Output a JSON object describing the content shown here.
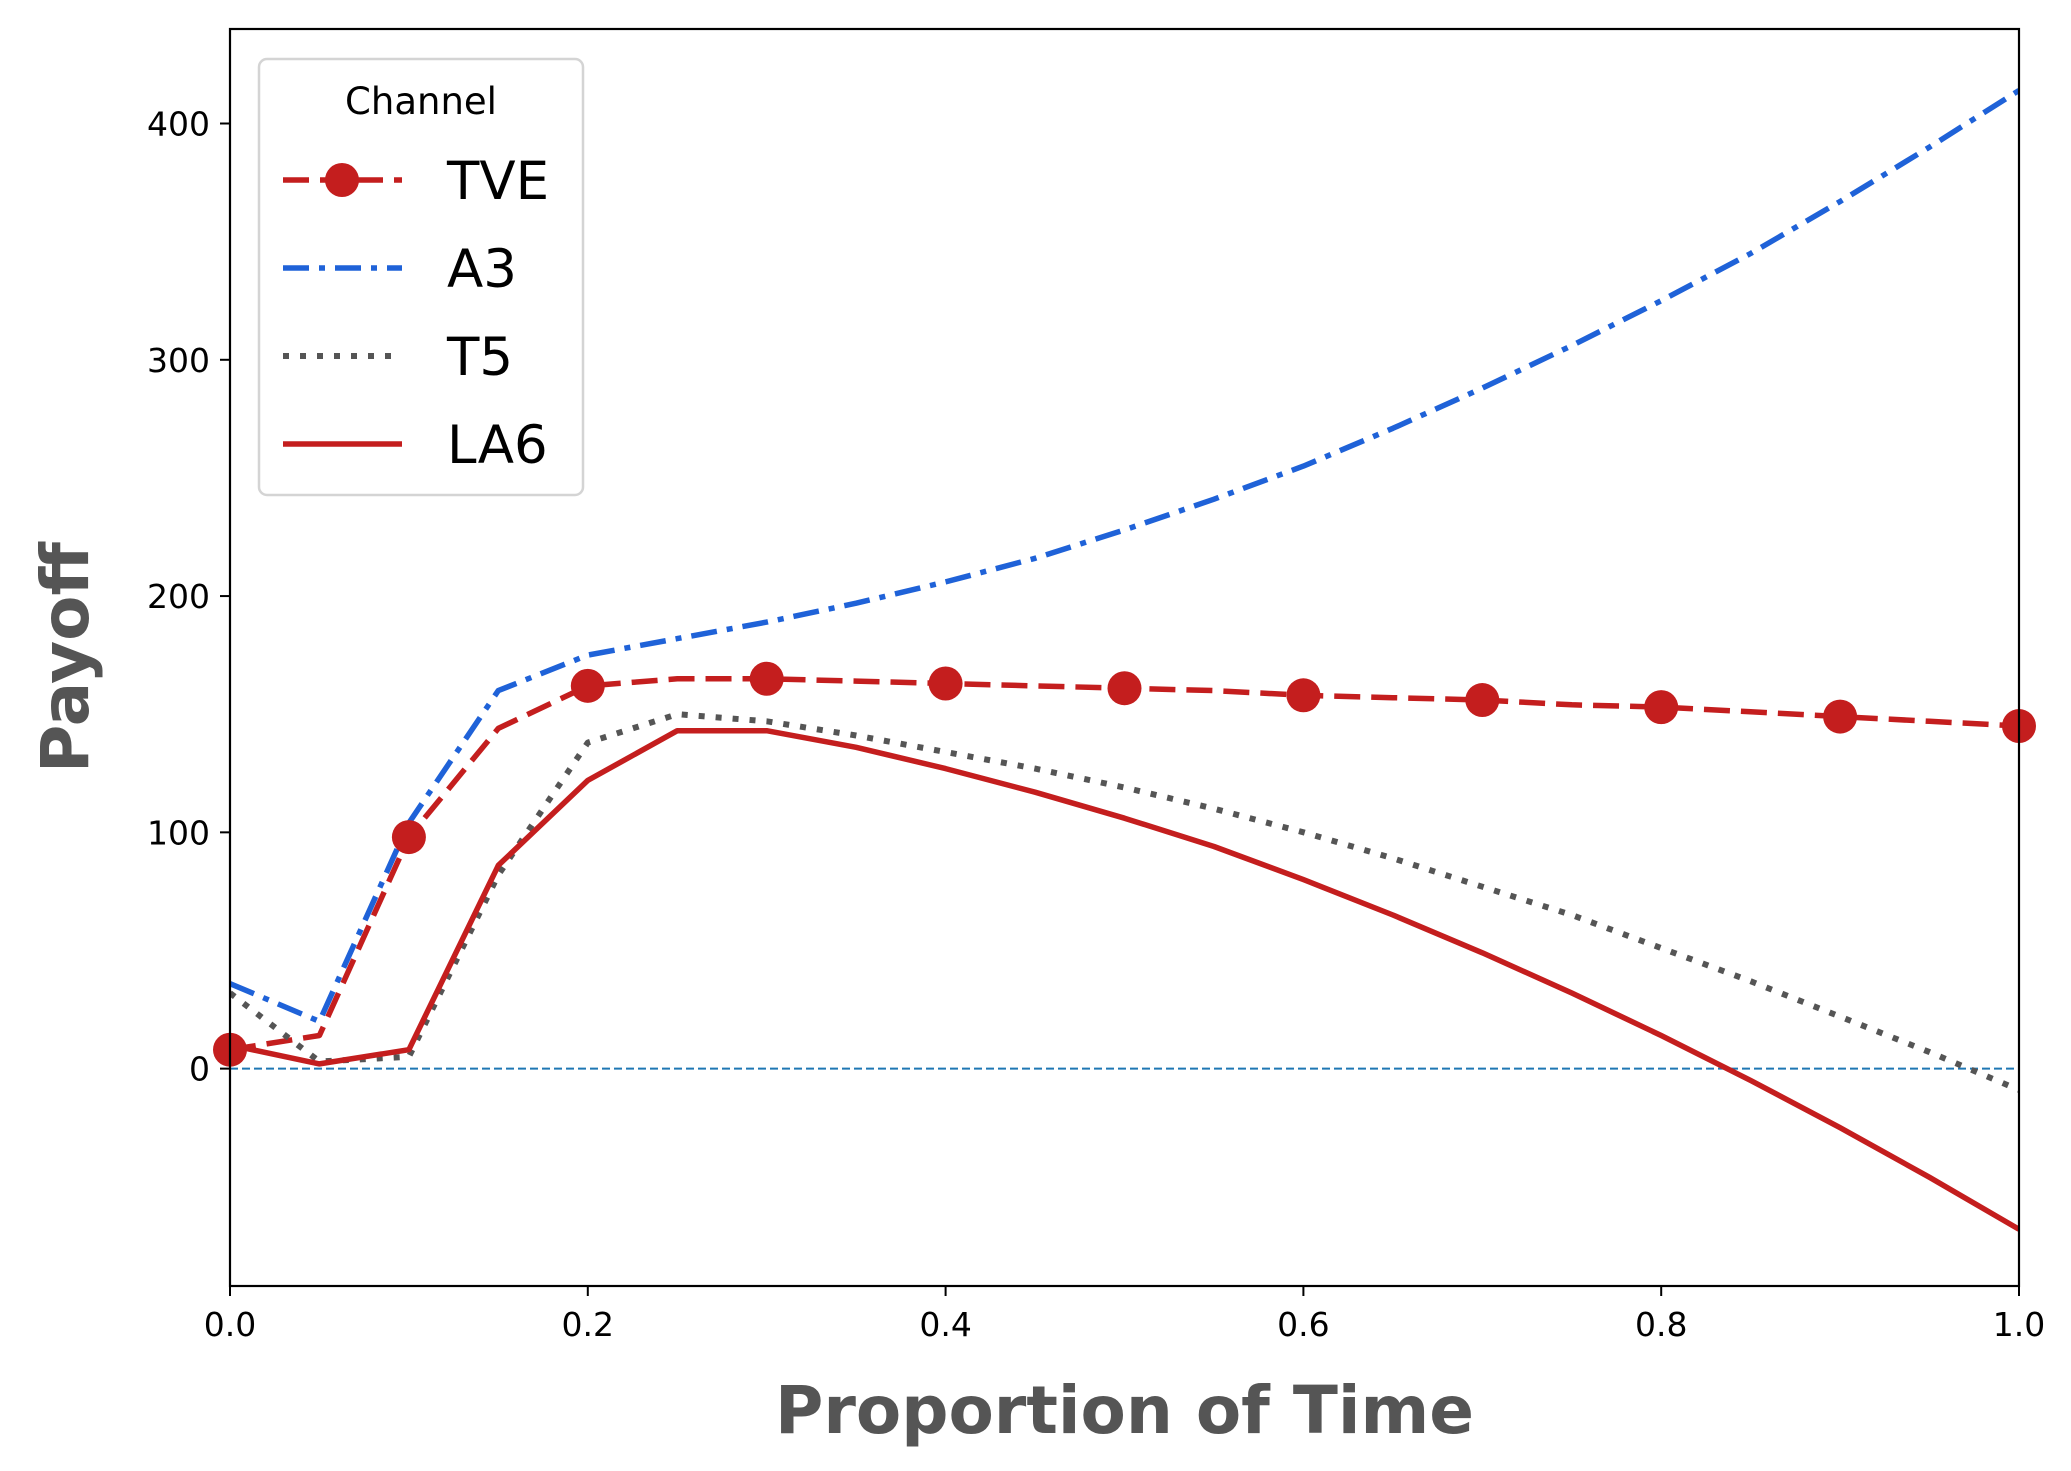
{
  "chart_data": {
    "type": "line",
    "title": "",
    "xlabel": "Proportion of Time",
    "ylabel": "Payoff",
    "xlim": [
      0.0,
      1.0
    ],
    "ylim": [
      -92,
      440
    ],
    "xticks": [
      0.0,
      0.2,
      0.4,
      0.6,
      0.8,
      1.0
    ],
    "xtick_labels": [
      "0.0",
      "0.2",
      "0.4",
      "0.6",
      "0.8",
      "1.0"
    ],
    "yticks": [
      0,
      100,
      200,
      300,
      400
    ],
    "ytick_labels": [
      "0",
      "100",
      "200",
      "300",
      "400"
    ],
    "grid": false,
    "legend": {
      "title": "Channel",
      "position": "top-left"
    },
    "reference_line": {
      "y": 0,
      "color": "#1f77b4",
      "style": "dashed"
    },
    "series": [
      {
        "name": "TVE",
        "color": "#c41e1e",
        "style": "dashed",
        "marker": "circle",
        "marker_x": [
          0.0,
          0.1,
          0.2,
          0.3,
          0.4,
          0.5,
          0.6,
          0.7,
          0.8,
          0.9,
          1.0
        ],
        "x": [
          0.0,
          0.05,
          0.1,
          0.15,
          0.2,
          0.25,
          0.3,
          0.35,
          0.4,
          0.45,
          0.5,
          0.55,
          0.6,
          0.65,
          0.7,
          0.75,
          0.8,
          0.85,
          0.9,
          0.95,
          1.0
        ],
        "y": [
          8,
          14,
          98,
          144,
          162,
          165,
          165,
          164,
          163,
          162,
          161,
          160,
          158,
          157,
          156,
          154,
          153,
          151,
          149,
          147,
          145
        ]
      },
      {
        "name": "A3",
        "color": "#1f62d8",
        "style": "dashdot",
        "x": [
          0.0,
          0.05,
          0.1,
          0.15,
          0.2,
          0.25,
          0.3,
          0.35,
          0.4,
          0.45,
          0.5,
          0.55,
          0.6,
          0.65,
          0.7,
          0.75,
          0.8,
          0.85,
          0.9,
          0.95,
          1.0
        ],
        "y": [
          36,
          20,
          104,
          160,
          175,
          182,
          189,
          197,
          206,
          216,
          228,
          241,
          255,
          271,
          288,
          306,
          325,
          345,
          367,
          390,
          414
        ]
      },
      {
        "name": "T5",
        "color": "#555555",
        "style": "dotted",
        "x": [
          0.0,
          0.05,
          0.1,
          0.15,
          0.2,
          0.25,
          0.3,
          0.35,
          0.4,
          0.45,
          0.5,
          0.55,
          0.6,
          0.65,
          0.7,
          0.75,
          0.8,
          0.85,
          0.9,
          0.95,
          1.0
        ],
        "y": [
          32,
          3,
          5,
          82,
          138,
          150,
          147,
          141,
          134,
          127,
          119,
          110,
          100,
          89,
          77,
          65,
          51,
          37,
          22,
          7,
          -9
        ]
      },
      {
        "name": "LA6",
        "color": "#c41e1e",
        "style": "solid",
        "x": [
          0.0,
          0.05,
          0.1,
          0.15,
          0.2,
          0.25,
          0.3,
          0.35,
          0.4,
          0.45,
          0.5,
          0.55,
          0.6,
          0.65,
          0.7,
          0.75,
          0.8,
          0.85,
          0.9,
          0.95,
          1.0
        ],
        "y": [
          10,
          2,
          8,
          86,
          122,
          143,
          143,
          136,
          127,
          117,
          106,
          94,
          80,
          65,
          49,
          32,
          14,
          -5,
          -25,
          -46,
          -68
        ]
      }
    ]
  }
}
